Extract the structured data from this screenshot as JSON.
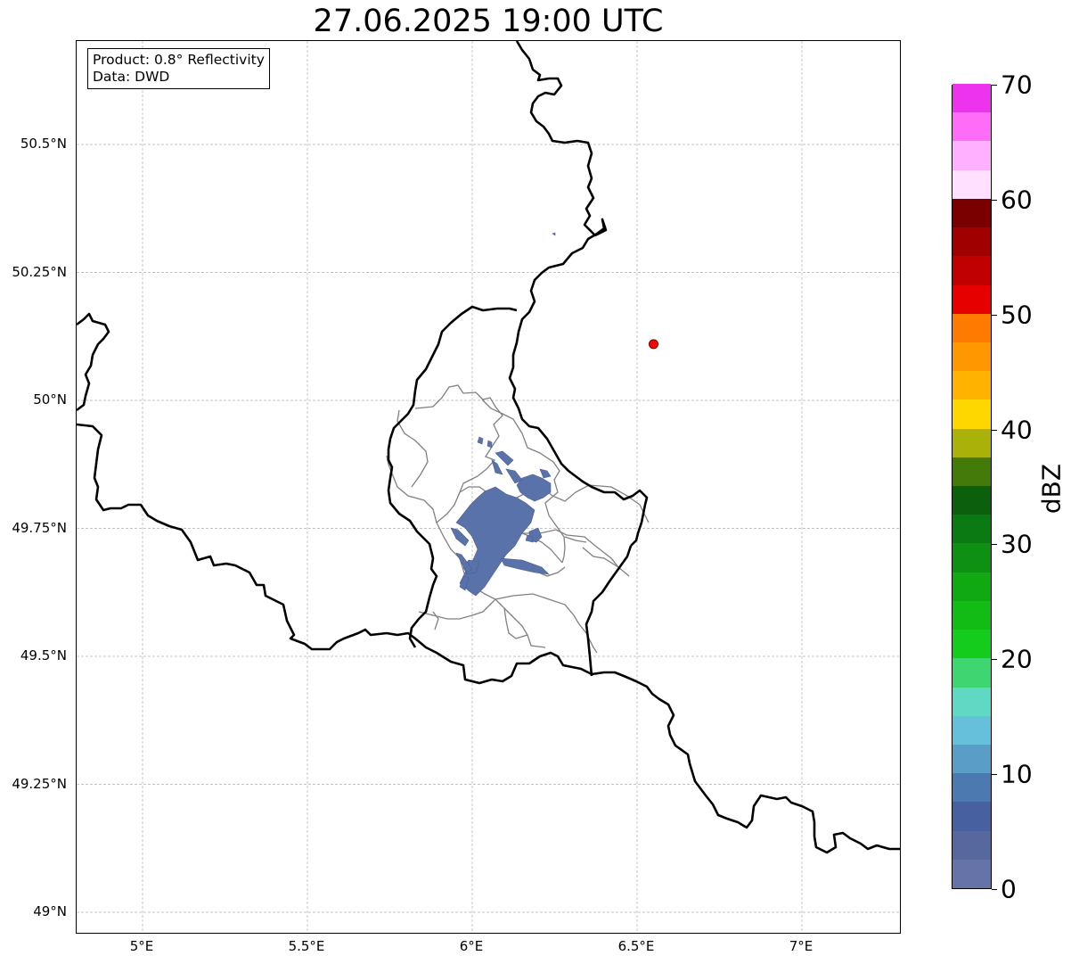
{
  "title": "27.06.2025 19:00 UTC",
  "info_box": {
    "product": "Product: 0.8° Reflectivity",
    "data": "Data: DWD"
  },
  "axes": {
    "lon_range": [
      4.8,
      7.3
    ],
    "lat_range": [
      48.95,
      50.7
    ],
    "y_ticks": [
      {
        "value": 50.5,
        "label": "50.5°N"
      },
      {
        "value": 50.25,
        "label": "50.25°N"
      },
      {
        "value": 50.0,
        "label": "50°N"
      },
      {
        "value": 49.75,
        "label": "49.75°N"
      },
      {
        "value": 49.5,
        "label": "49.5°N"
      },
      {
        "value": 49.25,
        "label": "49.25°N"
      },
      {
        "value": 49.0,
        "label": "49°N"
      }
    ],
    "x_ticks": [
      {
        "value": 5.0,
        "label": "5°E"
      },
      {
        "value": 5.5,
        "label": "5.5°E"
      },
      {
        "value": 6.0,
        "label": "6°E"
      },
      {
        "value": 6.5,
        "label": "6.5°E"
      },
      {
        "value": 7.0,
        "label": "7°E"
      }
    ]
  },
  "radar_site_marker": {
    "lon": 6.55,
    "lat": 50.11,
    "color": "#ff0000"
  },
  "colorbar": {
    "label": "dBZ",
    "min": 0,
    "max": 70,
    "tick_labels": [
      "0",
      "10",
      "20",
      "30",
      "40",
      "50",
      "60",
      "70"
    ],
    "colors": [
      "#6673a8",
      "#56689e",
      "#4660a0",
      "#4c7ab0",
      "#5a9ec8",
      "#66c0dc",
      "#5fd8c4",
      "#3ed670",
      "#13cc1c",
      "#12bc14",
      "#11a912",
      "#0e9112",
      "#0b7a12",
      "#0b5f0d",
      "#447a0a",
      "#aab108",
      "#ffd700",
      "#ffb300",
      "#ff9800",
      "#ff7a00",
      "#e60000",
      "#c00000",
      "#a00000",
      "#7a0000",
      "#ffe0ff",
      "#ffb0ff",
      "#ff6cf8",
      "#ee33ee"
    ]
  },
  "precip_color": "#5a72aa",
  "border_color": "#000000",
  "district_color": "#808080"
}
